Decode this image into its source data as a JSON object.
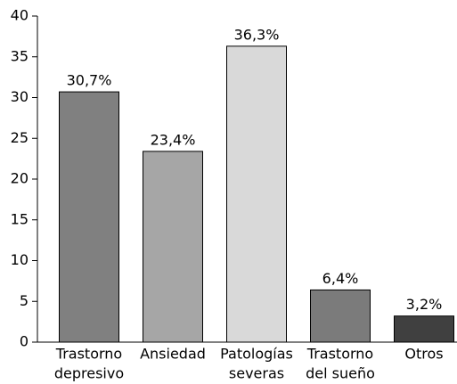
{
  "chart_data": {
    "type": "bar",
    "categories": [
      [
        "Trastorno",
        "depresivo"
      ],
      [
        "Ansiedad"
      ],
      [
        "Patologías",
        "severas"
      ],
      [
        "Trastorno",
        "del sueño"
      ],
      [
        "Otros"
      ]
    ],
    "values": [
      30.7,
      23.4,
      36.3,
      6.4,
      3.2
    ],
    "value_labels": [
      "30,7%",
      "23,4%",
      "36,3%",
      "6,4%",
      "3,2%"
    ],
    "colors": [
      "#808080",
      "#a6a6a6",
      "#d9d9d9",
      "#7b7b7b",
      "#404040"
    ],
    "ylim": [
      0,
      40
    ],
    "yticks": [
      0,
      5,
      10,
      15,
      20,
      25,
      30,
      35,
      40
    ],
    "grid": false
  }
}
